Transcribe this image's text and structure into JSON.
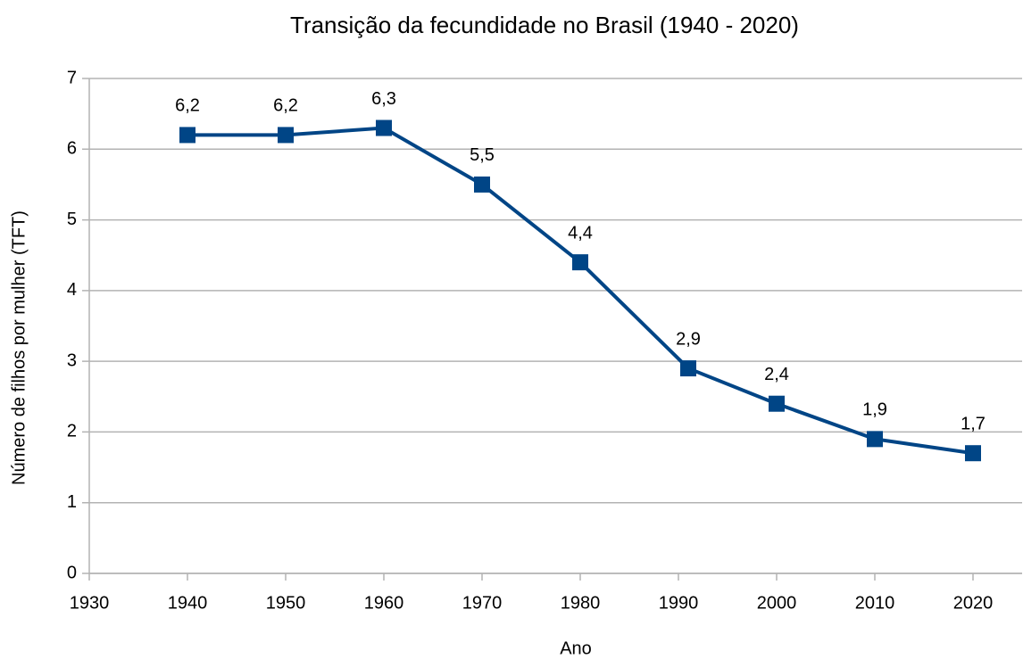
{
  "chart_data": {
    "type": "line",
    "title": "Transição da fecundidade no Brasil (1940 - 2020)",
    "x_label": "Ano",
    "y_label": "Número de filhos por mulher (TFT)",
    "series": [
      {
        "name": "TFT",
        "color": "#004586",
        "x": [
          1940,
          1950,
          1960,
          1970,
          1980,
          1991,
          2000,
          2010,
          2020
        ],
        "values": [
          6.2,
          6.2,
          6.3,
          5.5,
          4.4,
          2.9,
          2.4,
          1.9,
          1.7
        ],
        "value_labels": [
          "6,2",
          "6,2",
          "6,3",
          "5,5",
          "4,4",
          "2,9",
          "2,4",
          "1,9",
          "1,7"
        ]
      }
    ],
    "xlim": [
      1930,
      2025
    ],
    "xticks": [
      1930,
      1940,
      1950,
      1960,
      1970,
      1980,
      1990,
      2000,
      2010,
      2020
    ],
    "ylim": [
      0,
      7
    ],
    "yticks": [
      0,
      1,
      2,
      3,
      4,
      5,
      6,
      7
    ],
    "grid": true
  }
}
